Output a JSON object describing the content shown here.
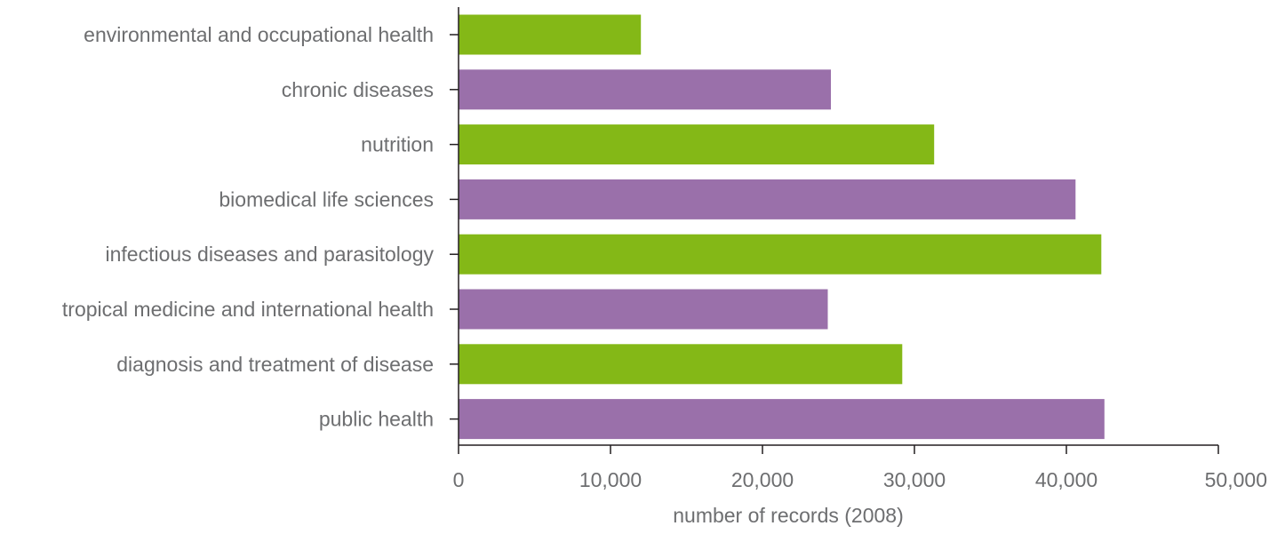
{
  "chart_data": {
    "type": "bar",
    "orientation": "horizontal",
    "categories": [
      "environmental and occupational health",
      "chronic diseases",
      "nutrition",
      "biomedical life sciences",
      "infectious diseases and parasitology",
      "tropical medicine and international health",
      "diagnosis and treatment of disease",
      "public health"
    ],
    "values": [
      12000,
      24500,
      31300,
      40600,
      42300,
      24300,
      29200,
      42500
    ],
    "bar_colors": [
      "#84b817",
      "#9a70aa",
      "#84b817",
      "#9a70aa",
      "#84b817",
      "#9a70aa",
      "#84b817",
      "#9a70aa"
    ],
    "xlabel": "number of records (2008)",
    "xlim": [
      0,
      50000
    ],
    "x_ticks": [
      0,
      10000,
      20000,
      30000,
      40000,
      50000
    ],
    "x_tick_labels": [
      "0",
      "10,000",
      "20,000",
      "30,000",
      "40,000",
      "50,000"
    ],
    "grid": false,
    "legend": "none"
  }
}
